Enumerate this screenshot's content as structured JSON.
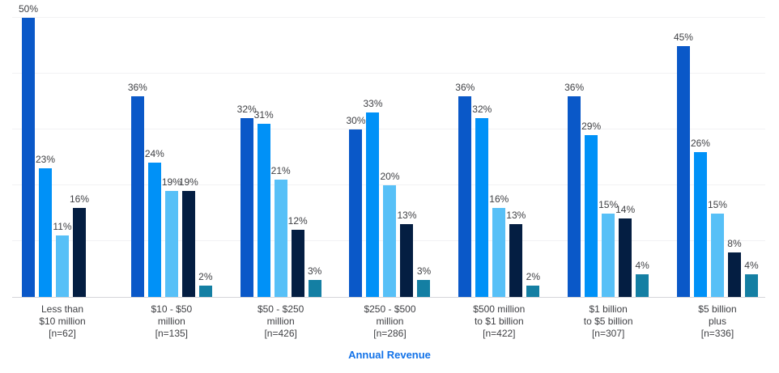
{
  "chart_data": {
    "type": "bar",
    "title": "",
    "xlabel": "Annual Revenue",
    "ylabel": "",
    "ylim": [
      0,
      50
    ],
    "grid_step": 10,
    "grid": true,
    "legend_position": "none",
    "value_suffix": "%",
    "categories": [
      {
        "lines": [
          "Less than",
          "$10 million",
          "[n=62]"
        ]
      },
      {
        "lines": [
          "$10 - $50",
          "million",
          "[n=135]"
        ]
      },
      {
        "lines": [
          "$50 - $250",
          "million",
          "[n=426]"
        ]
      },
      {
        "lines": [
          "$250 - $500",
          "million",
          "[n=286]"
        ]
      },
      {
        "lines": [
          "$500 million",
          "to $1 billion",
          "[n=422]"
        ]
      },
      {
        "lines": [
          "$1 billion",
          "to $5 billion",
          "[n=307]"
        ]
      },
      {
        "lines": [
          "$5 billion",
          "plus",
          "[n=336]"
        ]
      }
    ],
    "series": [
      {
        "color": "#0a58c8",
        "values": [
          50,
          36,
          32,
          30,
          36,
          36,
          45
        ]
      },
      {
        "color": "#0091f7",
        "values": [
          23,
          24,
          31,
          33,
          32,
          29,
          26
        ]
      },
      {
        "color": "#57c0f7",
        "values": [
          11,
          19,
          21,
          20,
          16,
          15,
          15
        ]
      },
      {
        "color": "#041e42",
        "values": [
          16,
          19,
          12,
          13,
          13,
          14,
          8
        ]
      },
      {
        "color": "#147fa3",
        "values": [
          null,
          2,
          3,
          3,
          2,
          4,
          4
        ]
      }
    ],
    "colors": {
      "gridline": "#f2f2f4",
      "baseline": "#d5d5d9",
      "label_text": "#3f4044",
      "axis_title": "#1272e8"
    }
  }
}
